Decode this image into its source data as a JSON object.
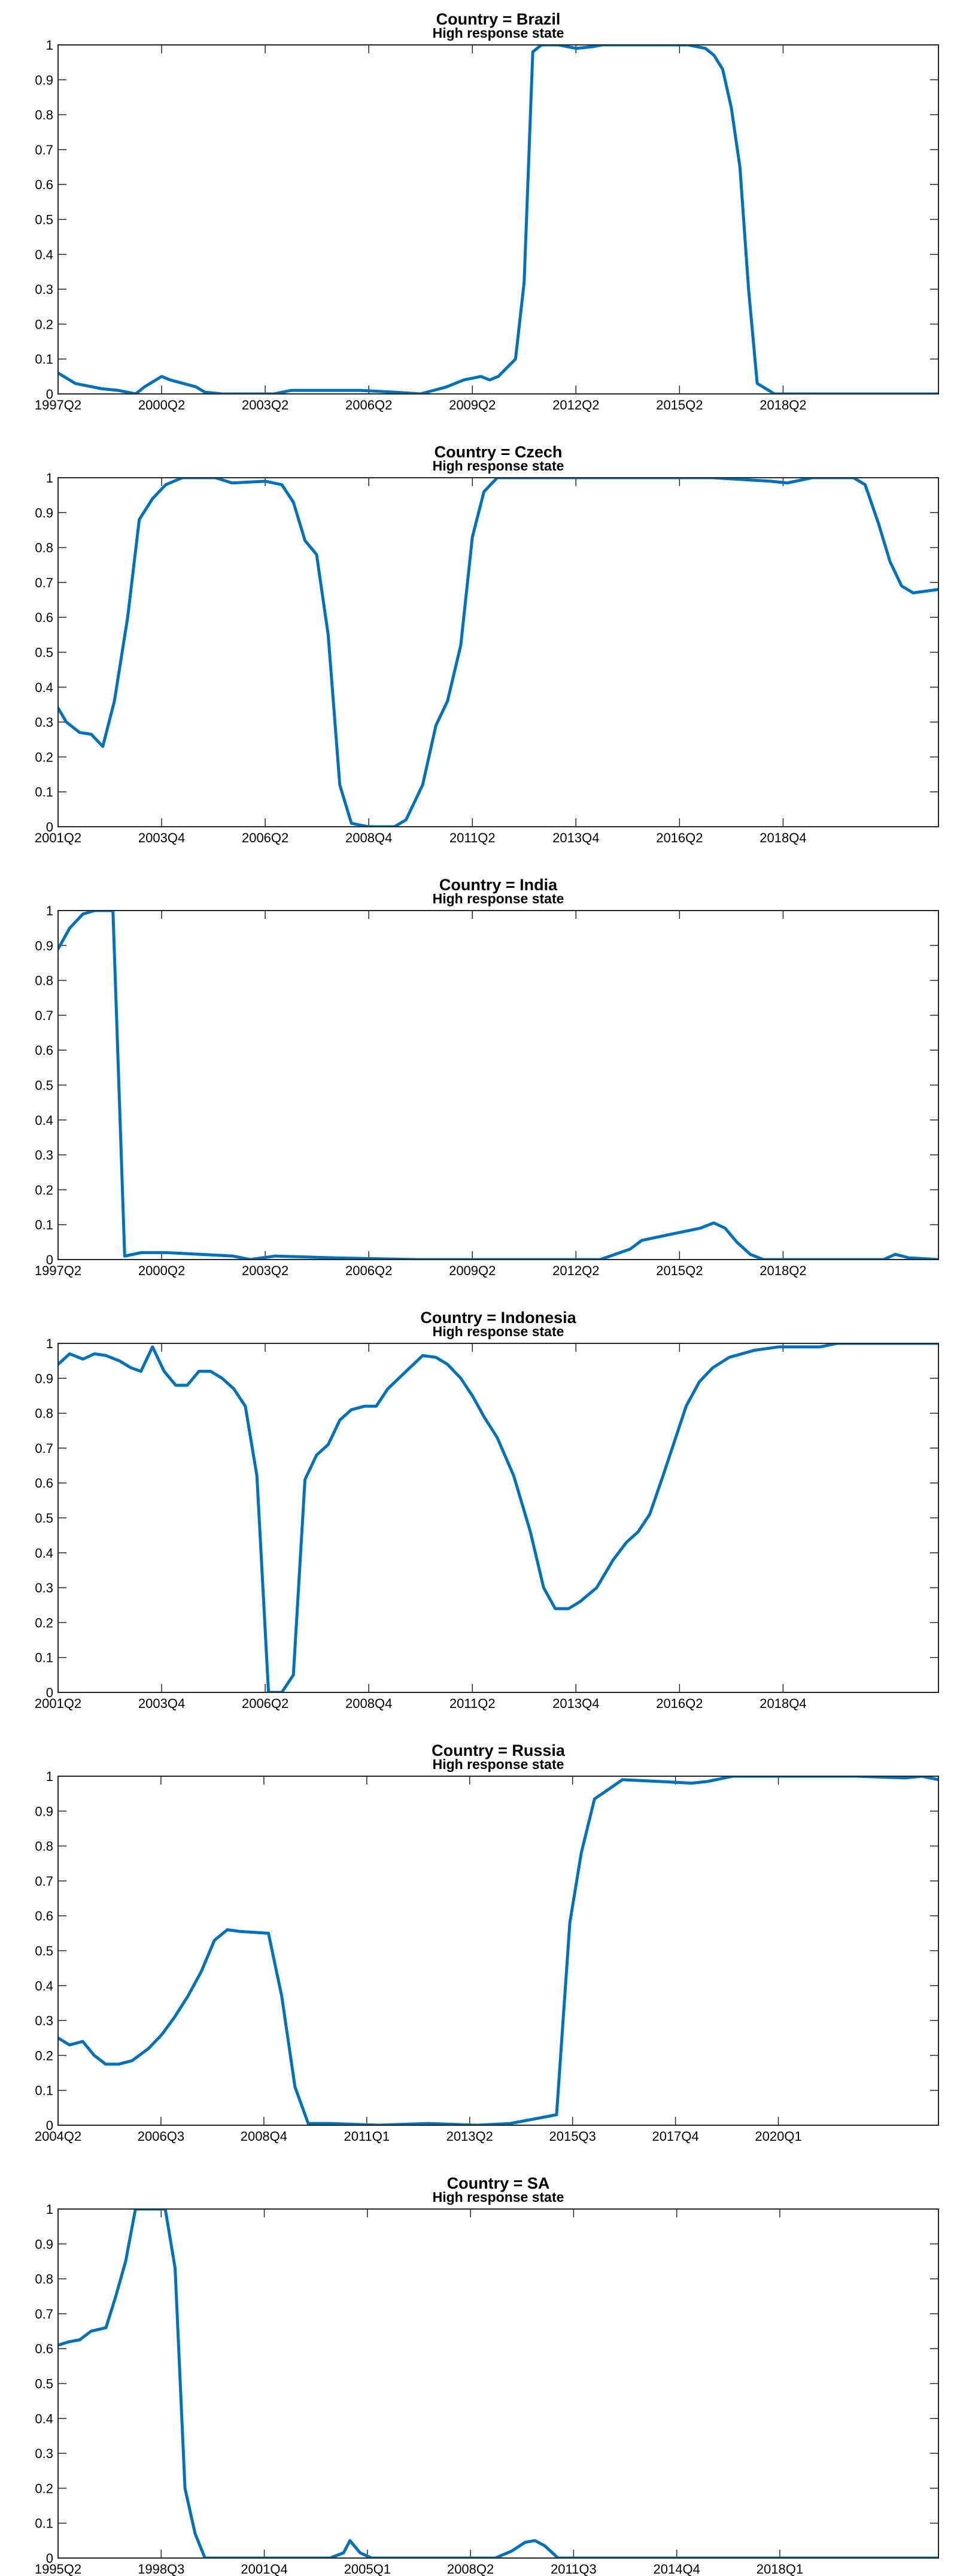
{
  "chart_data": [
    {
      "type": "line",
      "title": "Country = Brazil",
      "subtitle": "High response state",
      "color": "#0072bd",
      "xlim": [
        1997.25,
        2022.75
      ],
      "ylim": [
        0,
        1
      ],
      "xticks": [
        {
          "value": 1997.25,
          "label": "1997Q2"
        },
        {
          "value": 2000.25,
          "label": "2000Q2"
        },
        {
          "value": 2003.25,
          "label": "2003Q2"
        },
        {
          "value": 2006.25,
          "label": "2006Q2"
        },
        {
          "value": 2009.25,
          "label": "2009Q2"
        },
        {
          "value": 2012.25,
          "label": "2012Q2"
        },
        {
          "value": 2015.25,
          "label": "2015Q2"
        },
        {
          "value": 2018.25,
          "label": "2018Q2"
        }
      ],
      "yticks": [
        0,
        0.1,
        0.2,
        0.3,
        0.4,
        0.5,
        0.6,
        0.7,
        0.8,
        0.9,
        1
      ],
      "x": [
        1997.25,
        1997.75,
        1998.5,
        1999.0,
        1999.5,
        1999.75,
        2000.25,
        2000.5,
        2001.25,
        2001.5,
        2002.0,
        2003.5,
        2004.0,
        2006.0,
        2007.0,
        2007.75,
        2008.5,
        2009.0,
        2009.5,
        2009.75,
        2010.0,
        2010.5,
        2010.75,
        2011.0,
        2011.25,
        2011.75,
        2012.25,
        2012.75,
        2013.0,
        2015.5,
        2016.0,
        2016.25,
        2016.5,
        2016.75,
        2017.0,
        2017.25,
        2017.5,
        2018.0,
        2022.75
      ],
      "values": [
        0.06,
        0.03,
        0.015,
        0.01,
        0.0,
        0.02,
        0.05,
        0.04,
        0.02,
        0.005,
        0.0,
        0.0,
        0.01,
        0.01,
        0.005,
        0.0,
        0.02,
        0.04,
        0.05,
        0.04,
        0.05,
        0.1,
        0.32,
        0.98,
        1.0,
        1.0,
        0.99,
        0.995,
        1.0,
        1.0,
        0.99,
        0.97,
        0.93,
        0.82,
        0.65,
        0.3,
        0.03,
        0.0,
        0.0
      ]
    },
    {
      "type": "line",
      "title": "Country = Czech",
      "subtitle": "High response state",
      "color": "#0072bd",
      "xlim": [
        2001.25,
        2022.5
      ],
      "ylim": [
        0,
        1
      ],
      "xticks": [
        {
          "value": 2001.25,
          "label": "2001Q2"
        },
        {
          "value": 2003.75,
          "label": "2003Q4"
        },
        {
          "value": 2006.25,
          "label": "2006Q2"
        },
        {
          "value": 2008.75,
          "label": "2008Q4"
        },
        {
          "value": 2011.25,
          "label": "2011Q2"
        },
        {
          "value": 2013.75,
          "label": "2013Q4"
        },
        {
          "value": 2016.25,
          "label": "2016Q2"
        },
        {
          "value": 2018.75,
          "label": "2018Q4"
        }
      ],
      "yticks": [
        0,
        0.1,
        0.2,
        0.3,
        0.4,
        0.5,
        0.6,
        0.7,
        0.8,
        0.9,
        1
      ],
      "x": [
        2001.25,
        2001.45,
        2001.77,
        2002.05,
        2002.33,
        2002.61,
        2002.93,
        2003.21,
        2003.53,
        2003.85,
        2004.25,
        2005.05,
        2005.45,
        2006.25,
        2006.65,
        2006.93,
        2007.21,
        2007.49,
        2007.77,
        2008.05,
        2008.33,
        2008.73,
        2009.37,
        2009.65,
        2010.05,
        2010.37,
        2010.65,
        2010.97,
        2011.25,
        2011.53,
        2011.85,
        2017.05,
        2018.45,
        2018.85,
        2019.45,
        2020.45,
        2020.73,
        2021.05,
        2021.33,
        2021.61,
        2021.89,
        2022.5
      ],
      "values": [
        0.34,
        0.3,
        0.27,
        0.265,
        0.23,
        0.36,
        0.6,
        0.88,
        0.94,
        0.98,
        1.0,
        1.0,
        0.985,
        0.99,
        0.98,
        0.93,
        0.82,
        0.78,
        0.55,
        0.12,
        0.01,
        0.0,
        0.0,
        0.02,
        0.12,
        0.29,
        0.36,
        0.52,
        0.83,
        0.96,
        1.0,
        1.0,
        0.99,
        0.985,
        1.0,
        1.0,
        0.98,
        0.87,
        0.76,
        0.69,
        0.67,
        0.68
      ]
    },
    {
      "type": "line",
      "title": "Country = India",
      "subtitle": "High response state",
      "color": "#0072bd",
      "xlim": [
        1997.25,
        2022.75
      ],
      "ylim": [
        0,
        1
      ],
      "xticks": [
        {
          "value": 1997.25,
          "label": "1997Q2"
        },
        {
          "value": 2000.25,
          "label": "2000Q2"
        },
        {
          "value": 2003.25,
          "label": "2003Q2"
        },
        {
          "value": 2006.25,
          "label": "2006Q2"
        },
        {
          "value": 2009.25,
          "label": "2009Q2"
        },
        {
          "value": 2012.25,
          "label": "2012Q2"
        },
        {
          "value": 2015.25,
          "label": "2015Q2"
        },
        {
          "value": 2018.25,
          "label": "2018Q2"
        }
      ],
      "yticks": [
        0,
        0.1,
        0.2,
        0.3,
        0.4,
        0.5,
        0.6,
        0.7,
        0.8,
        0.9,
        1
      ],
      "x": [
        1997.25,
        1997.59,
        1997.97,
        1998.31,
        1998.84,
        1999.18,
        1999.67,
        2000.39,
        2001.36,
        2002.32,
        2002.81,
        2003.53,
        2005.22,
        2007.64,
        2012.95,
        2013.82,
        2014.16,
        2014.64,
        2015.37,
        2015.85,
        2016.24,
        2016.57,
        2016.91,
        2017.3,
        2017.68,
        2021.16,
        2021.5,
        2021.89,
        2022.75
      ],
      "values": [
        0.89,
        0.95,
        0.99,
        1.0,
        1.0,
        0.01,
        0.02,
        0.02,
        0.015,
        0.01,
        0.0,
        0.01,
        0.005,
        0.0,
        0.0,
        0.03,
        0.055,
        0.065,
        0.08,
        0.09,
        0.105,
        0.09,
        0.05,
        0.015,
        0.0,
        0.0,
        0.015,
        0.005,
        0.0
      ]
    },
    {
      "type": "line",
      "title": "Country = Indonesia",
      "subtitle": "High response state",
      "color": "#0072bd",
      "xlim": [
        2001.25,
        2022.5
      ],
      "ylim": [
        0,
        1
      ],
      "xticks": [
        {
          "value": 2001.25,
          "label": "2001Q2"
        },
        {
          "value": 2003.75,
          "label": "2003Q4"
        },
        {
          "value": 2006.25,
          "label": "2006Q2"
        },
        {
          "value": 2008.75,
          "label": "2008Q4"
        },
        {
          "value": 2011.25,
          "label": "2011Q2"
        },
        {
          "value": 2013.75,
          "label": "2013Q4"
        },
        {
          "value": 2016.25,
          "label": "2016Q2"
        },
        {
          "value": 2018.75,
          "label": "2018Q4"
        }
      ],
      "yticks": [
        0,
        0.1,
        0.2,
        0.3,
        0.4,
        0.5,
        0.6,
        0.7,
        0.8,
        0.9,
        1
      ],
      "x": [
        2001.25,
        2001.53,
        2001.85,
        2002.13,
        2002.41,
        2002.73,
        2003.01,
        2003.25,
        2003.53,
        2003.81,
        2004.09,
        2004.37,
        2004.65,
        2004.93,
        2005.21,
        2005.49,
        2005.77,
        2006.05,
        2006.33,
        2006.65,
        2006.93,
        2007.21,
        2007.49,
        2007.77,
        2008.05,
        2008.33,
        2008.65,
        2008.93,
        2009.21,
        2009.65,
        2010.05,
        2010.37,
        2010.65,
        2010.97,
        2011.25,
        2011.53,
        2011.85,
        2012.25,
        2012.65,
        2012.97,
        2013.25,
        2013.57,
        2013.85,
        2014.25,
        2014.65,
        2014.97,
        2015.25,
        2015.53,
        2015.85,
        2016.13,
        2016.41,
        2016.73,
        2017.05,
        2017.45,
        2018.05,
        2018.65,
        2019.65,
        2020.05,
        2022.5
      ],
      "values": [
        0.94,
        0.97,
        0.955,
        0.97,
        0.965,
        0.95,
        0.93,
        0.92,
        0.99,
        0.92,
        0.88,
        0.88,
        0.92,
        0.92,
        0.9,
        0.87,
        0.82,
        0.62,
        0.0,
        0.0,
        0.05,
        0.61,
        0.68,
        0.71,
        0.78,
        0.81,
        0.82,
        0.82,
        0.87,
        0.92,
        0.965,
        0.96,
        0.94,
        0.9,
        0.85,
        0.79,
        0.73,
        0.62,
        0.46,
        0.3,
        0.24,
        0.24,
        0.26,
        0.3,
        0.38,
        0.43,
        0.46,
        0.51,
        0.62,
        0.72,
        0.82,
        0.89,
        0.93,
        0.96,
        0.98,
        0.99,
        0.99,
        1.0,
        1.0
      ]
    },
    {
      "type": "line",
      "title": "Country = Russia",
      "subtitle": "High response state",
      "color": "#0072bd",
      "xlim": [
        2004.25,
        2023.5
      ],
      "ylim": [
        0,
        1
      ],
      "xticks": [
        {
          "value": 2004.25,
          "label": "2004Q2"
        },
        {
          "value": 2006.5,
          "label": "2006Q3"
        },
        {
          "value": 2008.75,
          "label": "2008Q4"
        },
        {
          "value": 2011.0,
          "label": "2011Q1"
        },
        {
          "value": 2013.25,
          "label": "2013Q2"
        },
        {
          "value": 2015.5,
          "label": "2015Q3"
        },
        {
          "value": 2017.75,
          "label": "2017Q4"
        },
        {
          "value": 2020.0,
          "label": "2020Q1"
        }
      ],
      "yticks": [
        0,
        0.1,
        0.2,
        0.3,
        0.4,
        0.5,
        0.6,
        0.7,
        0.8,
        0.9,
        1
      ],
      "x": [
        2004.25,
        2004.5,
        2004.79,
        2005.04,
        2005.29,
        2005.58,
        2005.87,
        2006.23,
        2006.52,
        2006.8,
        2007.09,
        2007.38,
        2007.67,
        2007.95,
        2008.24,
        2008.85,
        2009.14,
        2009.43,
        2009.72,
        2010.19,
        2011.26,
        2012.34,
        2013.42,
        2014.14,
        2015.15,
        2015.44,
        2015.69,
        2015.98,
        2016.26,
        2016.59,
        2017.38,
        2018.1,
        2018.46,
        2019.0,
        2021.7,
        2022.78,
        2023.14,
        2023.5
      ],
      "values": [
        0.25,
        0.23,
        0.24,
        0.2,
        0.175,
        0.175,
        0.185,
        0.22,
        0.26,
        0.31,
        0.37,
        0.44,
        0.53,
        0.56,
        0.555,
        0.55,
        0.37,
        0.11,
        0.005,
        0.005,
        0.0,
        0.005,
        0.0,
        0.005,
        0.03,
        0.58,
        0.78,
        0.935,
        0.96,
        0.99,
        0.985,
        0.98,
        0.985,
        1.0,
        1.0,
        0.995,
        1.0,
        0.99
      ]
    },
    {
      "type": "line",
      "title": "Country = SA",
      "subtitle": "High response state",
      "color": "#0072bd",
      "xlim": [
        1995.25,
        2023.0
      ],
      "ylim": [
        0,
        1
      ],
      "xticks": [
        {
          "value": 1995.25,
          "label": "1995Q2"
        },
        {
          "value": 1998.5,
          "label": "1998Q3"
        },
        {
          "value": 2001.75,
          "label": "2001Q4"
        },
        {
          "value": 2005.0,
          "label": "2005Q1"
        },
        {
          "value": 2008.25,
          "label": "2008Q2"
        },
        {
          "value": 2011.5,
          "label": "2011Q3"
        },
        {
          "value": 2014.75,
          "label": "2014Q4"
        },
        {
          "value": 2018.0,
          "label": "2018Q1"
        }
      ],
      "yticks": [
        0,
        0.1,
        0.2,
        0.3,
        0.4,
        0.5,
        0.6,
        0.7,
        0.8,
        0.9,
        1
      ],
      "x": [
        1995.25,
        1995.61,
        1995.93,
        1996.29,
        1996.76,
        1997.07,
        1997.38,
        1997.69,
        1998.37,
        1998.63,
        1998.94,
        1999.25,
        1999.57,
        1999.88,
        2003.83,
        2004.25,
        2004.45,
        2004.77,
        2005.13,
        2009.03,
        2009.55,
        2009.97,
        2010.28,
        2010.59,
        2011.01,
        2023.0
      ],
      "values": [
        0.61,
        0.62,
        0.625,
        0.65,
        0.66,
        0.75,
        0.85,
        1.0,
        1.0,
        1.0,
        0.83,
        0.2,
        0.07,
        0.0,
        0.0,
        0.015,
        0.05,
        0.015,
        0.0,
        0.0,
        0.02,
        0.045,
        0.05,
        0.035,
        0.0,
        0.0
      ]
    }
  ]
}
